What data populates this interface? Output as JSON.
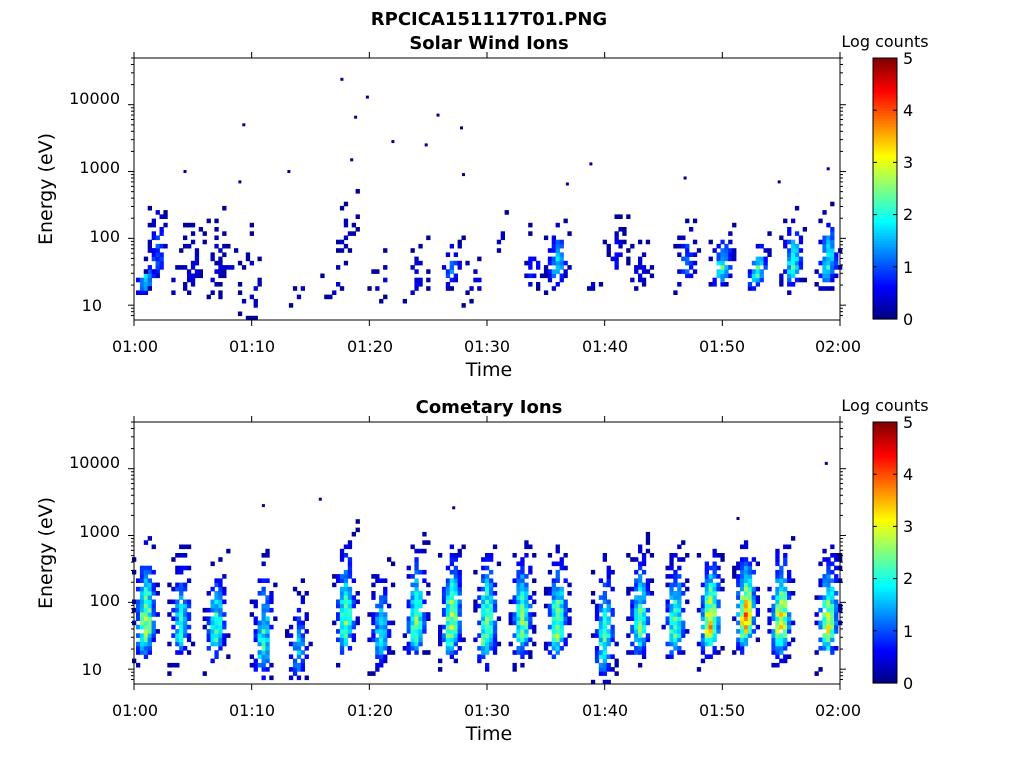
{
  "figure": {
    "title": "RPCICA151117T01.PNG"
  },
  "colorbar": {
    "label": "Log counts",
    "min": 0,
    "max": 5,
    "ticks": [
      "0",
      "1",
      "2",
      "3",
      "4",
      "5"
    ]
  },
  "chart_data": [
    {
      "type": "heatmap",
      "title": "Solar Wind Ions",
      "xlabel": "Time",
      "ylabel": "Energy (eV)",
      "x_ticks": [
        "01:00",
        "01:10",
        "01:20",
        "01:30",
        "01:40",
        "01:50",
        "02:00"
      ],
      "xlim": [
        "01:00",
        "02:00"
      ],
      "y_ticks": [
        "10",
        "100",
        "1000",
        "10000"
      ],
      "ylim": [
        6,
        50000
      ],
      "yscale": "log",
      "colorbar_label": "Log counts",
      "clim": [
        0,
        5
      ],
      "bursts": [
        {
          "t": "01:01",
          "emin": 15,
          "emax": 55,
          "peak": 1.8
        },
        {
          "t": "01:02",
          "emin": 20,
          "emax": 450,
          "peak": 1.0
        },
        {
          "t": "01:04",
          "emin": 15,
          "emax": 60,
          "peak": 0.6
        },
        {
          "t": "01:05",
          "emin": 13,
          "emax": 280,
          "peak": 0.5
        },
        {
          "t": "01:07",
          "emin": 13,
          "emax": 290,
          "peak": 0.5
        },
        {
          "t": "01:08",
          "emin": 20,
          "emax": 110,
          "peak": 0.5
        },
        {
          "t": "01:10",
          "emin": 6,
          "emax": 160,
          "peak": 0.5
        },
        {
          "t": "01:14",
          "emin": 13,
          "emax": 20,
          "peak": 0.4
        },
        {
          "t": "01:17",
          "emin": 13,
          "emax": 60,
          "peak": 0.5
        },
        {
          "t": "01:18",
          "emin": 50,
          "emax": 380,
          "peak": 0.4
        },
        {
          "t": "01:21",
          "emin": 13,
          "emax": 60,
          "peak": 0.4
        },
        {
          "t": "01:24",
          "emin": 13,
          "emax": 100,
          "peak": 0.5
        },
        {
          "t": "01:27",
          "emin": 20,
          "emax": 100,
          "peak": 1.2
        },
        {
          "t": "01:29",
          "emin": 13,
          "emax": 60,
          "peak": 0.5
        },
        {
          "t": "01:31",
          "emin": 60,
          "emax": 300,
          "peak": 0.4
        },
        {
          "t": "01:34",
          "emin": 18,
          "emax": 180,
          "peak": 0.8
        },
        {
          "t": "01:36",
          "emin": 18,
          "emax": 220,
          "peak": 1.6
        },
        {
          "t": "01:39",
          "emin": 18,
          "emax": 30,
          "peak": 0.5
        },
        {
          "t": "01:41",
          "emin": 25,
          "emax": 220,
          "peak": 0.6
        },
        {
          "t": "01:43",
          "emin": 18,
          "emax": 100,
          "peak": 0.6
        },
        {
          "t": "01:47",
          "emin": 18,
          "emax": 220,
          "peak": 1.2
        },
        {
          "t": "01:50",
          "emin": 20,
          "emax": 130,
          "peak": 2.1
        },
        {
          "t": "01:53",
          "emin": 18,
          "emax": 100,
          "peak": 2.1
        },
        {
          "t": "01:56",
          "emin": 18,
          "emax": 260,
          "peak": 2.0
        },
        {
          "t": "01:59",
          "emin": 18,
          "emax": 300,
          "peak": 2.0
        }
      ],
      "scatter_points": [
        {
          "t": "01:17:40",
          "e": 24000
        },
        {
          "t": "01:18:50",
          "e": 6500
        },
        {
          "t": "01:19:50",
          "e": 13000
        },
        {
          "t": "01:09:20",
          "e": 5000
        },
        {
          "t": "01:25:50",
          "e": 7000
        },
        {
          "t": "01:27:50",
          "e": 4500
        },
        {
          "t": "01:22:00",
          "e": 2800
        },
        {
          "t": "01:24:50",
          "e": 2500
        },
        {
          "t": "01:18:30",
          "e": 1500
        },
        {
          "t": "01:13:10",
          "e": 1000
        },
        {
          "t": "01:04:20",
          "e": 1000
        },
        {
          "t": "01:28:00",
          "e": 900
        },
        {
          "t": "01:38:50",
          "e": 1300
        },
        {
          "t": "01:59:00",
          "e": 1100
        },
        {
          "t": "01:09:00",
          "e": 700
        },
        {
          "t": "01:36:50",
          "e": 650
        },
        {
          "t": "01:46:50",
          "e": 800
        },
        {
          "t": "01:54:50",
          "e": 700
        }
      ]
    },
    {
      "type": "heatmap",
      "title": "Cometary Ions",
      "xlabel": "Time",
      "ylabel": "Energy (eV)",
      "x_ticks": [
        "01:00",
        "01:10",
        "01:20",
        "01:30",
        "01:40",
        "01:50",
        "02:00"
      ],
      "xlim": [
        "01:00",
        "02:00"
      ],
      "y_ticks": [
        "10",
        "100",
        "1000",
        "10000"
      ],
      "ylim": [
        6,
        50000
      ],
      "yscale": "log",
      "colorbar_label": "Log counts",
      "clim": [
        0,
        5
      ],
      "bursts": [
        {
          "t": "01:01",
          "emin": 13,
          "emax": 900,
          "peak": 2.8
        },
        {
          "t": "01:04",
          "emin": 13,
          "emax": 700,
          "peak": 2.0
        },
        {
          "t": "01:07",
          "emin": 13,
          "emax": 450,
          "peak": 2.2
        },
        {
          "t": "01:11",
          "emin": 6,
          "emax": 600,
          "peak": 2.0
        },
        {
          "t": "01:14",
          "emin": 6,
          "emax": 200,
          "peak": 1.5
        },
        {
          "t": "01:18",
          "emin": 13,
          "emax": 1200,
          "peak": 2.3
        },
        {
          "t": "01:21",
          "emin": 10,
          "emax": 450,
          "peak": 1.8
        },
        {
          "t": "01:24",
          "emin": 13,
          "emax": 1000,
          "peak": 2.3
        },
        {
          "t": "01:27",
          "emin": 13,
          "emax": 900,
          "peak": 2.8
        },
        {
          "t": "01:30",
          "emin": 10,
          "emax": 900,
          "peak": 2.6
        },
        {
          "t": "01:33",
          "emin": 13,
          "emax": 900,
          "peak": 2.5
        },
        {
          "t": "01:36",
          "emin": 13,
          "emax": 700,
          "peak": 2.6
        },
        {
          "t": "01:40",
          "emin": 6,
          "emax": 700,
          "peak": 2.1
        },
        {
          "t": "01:43",
          "emin": 13,
          "emax": 900,
          "peak": 2.3
        },
        {
          "t": "01:46",
          "emin": 13,
          "emax": 700,
          "peak": 2.4
        },
        {
          "t": "01:49",
          "emin": 15,
          "emax": 700,
          "peak": 3.2
        },
        {
          "t": "01:52",
          "emin": 18,
          "emax": 800,
          "peak": 3.5
        },
        {
          "t": "01:55",
          "emin": 13,
          "emax": 900,
          "peak": 3.1
        },
        {
          "t": "01:59",
          "emin": 13,
          "emax": 700,
          "peak": 2.9
        }
      ],
      "scatter_points": [
        {
          "t": "01:58:50",
          "e": 12000
        },
        {
          "t": "01:15:50",
          "e": 3500
        },
        {
          "t": "01:11:00",
          "e": 2800
        },
        {
          "t": "01:27:10",
          "e": 2600
        },
        {
          "t": "01:51:20",
          "e": 1800
        }
      ]
    }
  ]
}
